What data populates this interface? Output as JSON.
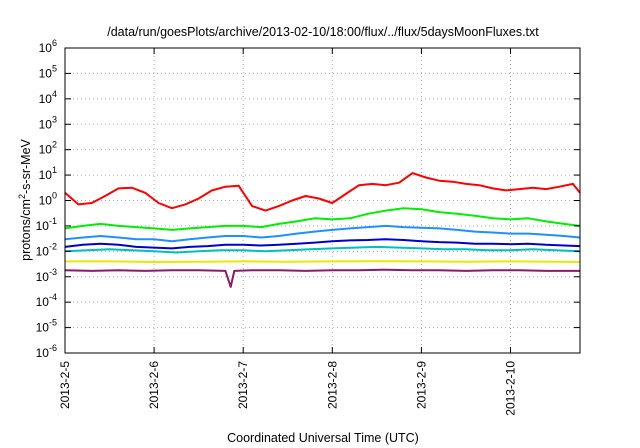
{
  "chart_data": {
    "type": "line",
    "title": "/data/run/goesPlots/archive/2013-02-10/18:00/flux/../flux/5daysMoonFluxes.txt",
    "xlabel": "Coordinated Universal Time (UTC)",
    "ylabel_parts": [
      "protons/cm",
      "2",
      "-s-sr-MeV"
    ],
    "y_scale": "log",
    "ylim": [
      1e-06,
      1000000.0
    ],
    "y_ticks": [
      {
        "base": "10",
        "exp": "-6",
        "value": -6
      },
      {
        "base": "10",
        "exp": "-5",
        "value": -5
      },
      {
        "base": "10",
        "exp": "-4",
        "value": -4
      },
      {
        "base": "10",
        "exp": "-3",
        "value": -3
      },
      {
        "base": "10",
        "exp": "-2",
        "value": -2
      },
      {
        "base": "10",
        "exp": "-1",
        "value": -1
      },
      {
        "base": "10",
        "exp": "0",
        "value": 0
      },
      {
        "base": "10",
        "exp": "1",
        "value": 1
      },
      {
        "base": "10",
        "exp": "2",
        "value": 2
      },
      {
        "base": "10",
        "exp": "3",
        "value": 3
      },
      {
        "base": "10",
        "exp": "4",
        "value": 4
      },
      {
        "base": "10",
        "exp": "5",
        "value": 5
      },
      {
        "base": "10",
        "exp": "6",
        "value": 6
      }
    ],
    "x_ticks": [
      {
        "label": "2013-2-5",
        "day": 0
      },
      {
        "label": "2013-2-6",
        "day": 1
      },
      {
        "label": "2013-2-7",
        "day": 2
      },
      {
        "label": "2013-2-8",
        "day": 3
      },
      {
        "label": "2013-2-9",
        "day": 4
      },
      {
        "label": "2013-2-10",
        "day": 5
      }
    ],
    "xlim_days": [
      0,
      5.78
    ],
    "grid": true,
    "series": [
      {
        "color": "#ff0000",
        "x": [
          0,
          0.15,
          0.3,
          0.45,
          0.6,
          0.75,
          0.9,
          1.05,
          1.2,
          1.35,
          1.5,
          1.65,
          1.8,
          1.95,
          2.1,
          2.25,
          2.4,
          2.55,
          2.7,
          2.85,
          3.0,
          3.15,
          3.3,
          3.45,
          3.6,
          3.75,
          3.9,
          4.05,
          4.2,
          4.35,
          4.5,
          4.65,
          4.8,
          4.95,
          5.1,
          5.25,
          5.4,
          5.55,
          5.7,
          5.78
        ],
        "y": [
          2.0,
          0.7,
          0.8,
          1.5,
          3.0,
          3.2,
          2.0,
          0.8,
          0.5,
          0.7,
          1.2,
          2.5,
          3.5,
          3.8,
          0.6,
          0.4,
          0.6,
          1.0,
          1.5,
          1.2,
          0.8,
          1.8,
          4.0,
          4.5,
          4.0,
          5.0,
          12.0,
          8.0,
          6.0,
          5.5,
          4.5,
          4.0,
          3.0,
          2.5,
          2.8,
          3.2,
          2.8,
          3.5,
          4.5,
          2.0
        ]
      },
      {
        "color": "#00ee00",
        "x": [
          0,
          0.2,
          0.4,
          0.6,
          0.8,
          1.0,
          1.2,
          1.4,
          1.6,
          1.8,
          2.0,
          2.2,
          2.4,
          2.6,
          2.8,
          3.0,
          3.2,
          3.4,
          3.6,
          3.8,
          4.0,
          4.2,
          4.4,
          4.6,
          4.8,
          5.0,
          5.2,
          5.4,
          5.6,
          5.78
        ],
        "y": [
          0.08,
          0.1,
          0.12,
          0.1,
          0.09,
          0.08,
          0.07,
          0.08,
          0.09,
          0.1,
          0.1,
          0.09,
          0.12,
          0.15,
          0.2,
          0.18,
          0.2,
          0.3,
          0.4,
          0.5,
          0.45,
          0.35,
          0.3,
          0.25,
          0.2,
          0.18,
          0.2,
          0.15,
          0.12,
          0.1
        ]
      },
      {
        "color": "#1e90ff",
        "x": [
          0,
          0.2,
          0.4,
          0.6,
          0.8,
          1.0,
          1.2,
          1.4,
          1.6,
          1.8,
          2.0,
          2.2,
          2.4,
          2.6,
          2.8,
          3.0,
          3.2,
          3.4,
          3.6,
          3.8,
          4.0,
          4.2,
          4.4,
          4.6,
          4.8,
          5.0,
          5.2,
          5.4,
          5.6,
          5.78
        ],
        "y": [
          0.03,
          0.035,
          0.04,
          0.035,
          0.03,
          0.03,
          0.025,
          0.03,
          0.035,
          0.04,
          0.04,
          0.035,
          0.04,
          0.05,
          0.06,
          0.07,
          0.08,
          0.09,
          0.1,
          0.09,
          0.085,
          0.08,
          0.07,
          0.06,
          0.055,
          0.05,
          0.05,
          0.045,
          0.04,
          0.035
        ]
      },
      {
        "color": "#0000cc",
        "x": [
          0,
          0.2,
          0.4,
          0.6,
          0.8,
          1.0,
          1.2,
          1.4,
          1.6,
          1.8,
          2.0,
          2.2,
          2.4,
          2.6,
          2.8,
          3.0,
          3.2,
          3.4,
          3.6,
          3.8,
          4.0,
          4.2,
          4.4,
          4.6,
          4.8,
          5.0,
          5.2,
          5.4,
          5.6,
          5.78
        ],
        "y": [
          0.015,
          0.018,
          0.02,
          0.018,
          0.015,
          0.014,
          0.013,
          0.015,
          0.016,
          0.018,
          0.018,
          0.017,
          0.018,
          0.02,
          0.022,
          0.025,
          0.027,
          0.028,
          0.03,
          0.028,
          0.025,
          0.023,
          0.022,
          0.02,
          0.02,
          0.019,
          0.02,
          0.018,
          0.017,
          0.016
        ]
      },
      {
        "color": "#00bfbf",
        "x": [
          0,
          0.25,
          0.5,
          0.75,
          1.0,
          1.25,
          1.5,
          1.75,
          2.0,
          2.25,
          2.5,
          2.75,
          3.0,
          3.25,
          3.5,
          3.75,
          4.0,
          4.25,
          4.5,
          4.75,
          5.0,
          5.25,
          5.5,
          5.78
        ],
        "y": [
          0.01,
          0.011,
          0.012,
          0.011,
          0.01,
          0.009,
          0.01,
          0.011,
          0.011,
          0.01,
          0.011,
          0.012,
          0.013,
          0.014,
          0.015,
          0.014,
          0.013,
          0.012,
          0.012,
          0.011,
          0.011,
          0.012,
          0.011,
          0.01
        ]
      },
      {
        "color": "#e8e800",
        "x": [
          0,
          0.5,
          1.0,
          1.5,
          2.0,
          2.5,
          3.0,
          3.5,
          4.0,
          4.5,
          5.0,
          5.5,
          5.78
        ],
        "y": [
          0.004,
          0.004,
          0.0038,
          0.0039,
          0.004,
          0.0039,
          0.004,
          0.0041,
          0.004,
          0.0039,
          0.004,
          0.0039,
          0.0038
        ]
      },
      {
        "color": "#8b1a6b",
        "x": [
          0,
          0.3,
          0.6,
          0.9,
          1.2,
          1.5,
          1.8,
          1.86,
          1.9,
          2.1,
          2.4,
          2.7,
          3.0,
          3.3,
          3.6,
          3.9,
          4.2,
          4.5,
          4.8,
          5.1,
          5.4,
          5.78
        ],
        "y": [
          0.0018,
          0.0017,
          0.0018,
          0.0017,
          0.0018,
          0.0018,
          0.0017,
          0.0004,
          0.0017,
          0.0018,
          0.0018,
          0.0017,
          0.0018,
          0.0018,
          0.0019,
          0.0018,
          0.0018,
          0.0017,
          0.0018,
          0.0018,
          0.0017,
          0.0017
        ]
      }
    ]
  }
}
